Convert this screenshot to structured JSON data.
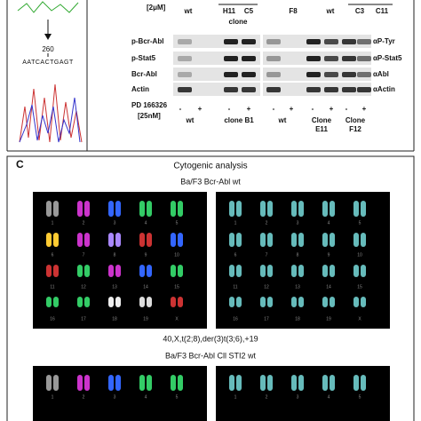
{
  "sequence": {
    "position": "260",
    "bases": "AATCACTGAGT"
  },
  "panel_b": {
    "top_conc": "[2μM]",
    "top_lanes": [
      "wt",
      "H11",
      "C5",
      "clone",
      "F8",
      "wt",
      "C3",
      "C11"
    ],
    "rows_left": [
      "p-Bcr-Abl",
      "p-Stat5",
      "Bcr-Abl",
      "Actin"
    ],
    "rows_right": [
      "αP-Tyr",
      "αP-Stat5",
      "αAbl",
      "αActin"
    ],
    "treatment": "PD 166326",
    "treatment_conc": "[25nM]",
    "signs": [
      "-",
      "+",
      "-",
      "+",
      "-",
      "+",
      "-",
      "+",
      "-",
      "+"
    ],
    "groups": [
      "wt",
      "clone B1",
      "wt",
      "Clone E11",
      "Clone F12"
    ]
  },
  "panel_c": {
    "letter": "C",
    "title": "Cytogenic analysis",
    "karyotype_1_title": "Ba/F3 Bcr-Abl wt",
    "karyotype_1_caption": "40,X,t(2;8),der(3)t(3;6),+19",
    "karyotype_2_title": "Ba/F3 Bcr-Abl Cll STI2 wt",
    "chromosome_labels": [
      "1",
      "2",
      "3",
      "4",
      "5",
      "6",
      "7",
      "8",
      "9",
      "10",
      "11",
      "12",
      "13",
      "14",
      "15",
      "16",
      "17",
      "18",
      "19",
      "X"
    ]
  }
}
